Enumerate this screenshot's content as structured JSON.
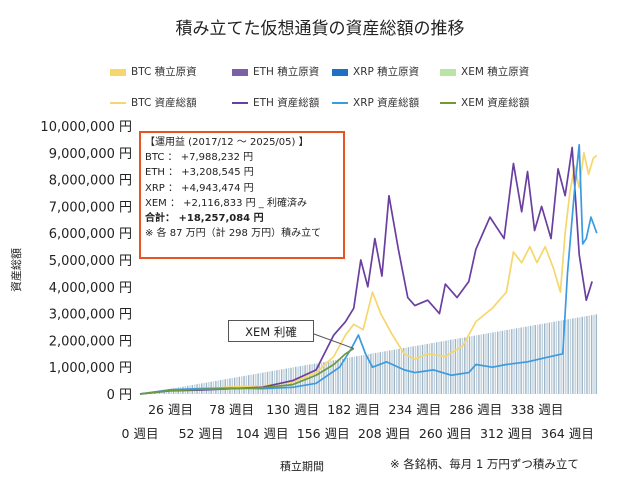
{
  "title": "積み立てた仮想通貨の資産総額の推移",
  "legend": [
    {
      "label": "BTC  積立原資",
      "kind": "bar",
      "color": "#f5d76e"
    },
    {
      "label": "ETH  積立原資",
      "kind": "bar",
      "color": "#7d5fa6"
    },
    {
      "label": "XRP  積立原資",
      "kind": "bar",
      "color": "#1f6fc4"
    },
    {
      "label": "XEM  積立原資",
      "kind": "bar",
      "color": "#b9e4a5"
    },
    {
      "label": "BTC  資産総額",
      "kind": "line",
      "color": "#f5d76e"
    },
    {
      "label": "ETH  資産総額",
      "kind": "line",
      "color": "#6a3fa0"
    },
    {
      "label": "XRP  資産総額",
      "kind": "line",
      "color": "#3a9be0"
    },
    {
      "label": "XEM  資産総額",
      "kind": "line",
      "color": "#6c9a3c"
    }
  ],
  "infobox": {
    "heading": "【運用益 (2017/12 ～ 2025/05) 】",
    "btc": "BTC ： +7,988,232 円",
    "eth": "ETH ： +3,208,545 円",
    "xrp": "XRP ： +4,943,474 円",
    "xem": "XEM ： +2,116,833 円 _ 利確済み",
    "total": "合計： +18,257,084 円",
    "note": "※ 各 87 万円（計 298 万円）積み立て"
  },
  "callout": "XEM 利確",
  "xlabel": "積立期間",
  "ylabel": "資産総額",
  "footnote": "※ 各銘柄、毎月 1 万円ずつ積み立て",
  "chart_data": {
    "type": "line",
    "x_unit": "週目",
    "xlim": [
      0,
      390
    ],
    "ylim": [
      0,
      10000000
    ],
    "y_ticks": [
      "0 円",
      "1,000,000 円",
      "2,000,000 円",
      "3,000,000 円",
      "4,000,000 円",
      "5,000,000 円",
      "6,000,000 円",
      "7,000,000 円",
      "8,000,000 円",
      "9,000,000 円",
      "10,000,000 円"
    ],
    "x_ticks_row1": [
      "26 週目",
      "78 週目",
      "130 週目",
      "182 週目",
      "234 週目",
      "286 週目",
      "338 週目"
    ],
    "x_ticks_row2": [
      "0 週目",
      "52 週目",
      "104 週目",
      "156 週目",
      "208 週目",
      "260 週目",
      "312 週目",
      "364 週目"
    ],
    "grid": false,
    "legend_position": "top",
    "series": [
      {
        "name": "BTC  資産総額",
        "color": "#f5d76e",
        "points": [
          [
            0,
            0
          ],
          [
            26,
            150000
          ],
          [
            52,
            180000
          ],
          [
            78,
            260000
          ],
          [
            104,
            300000
          ],
          [
            130,
            450000
          ],
          [
            150,
            800000
          ],
          [
            165,
            1400000
          ],
          [
            175,
            2200000
          ],
          [
            182,
            2600000
          ],
          [
            190,
            2400000
          ],
          [
            198,
            3800000
          ],
          [
            205,
            3000000
          ],
          [
            215,
            2200000
          ],
          [
            225,
            1500000
          ],
          [
            234,
            1300000
          ],
          [
            245,
            1500000
          ],
          [
            260,
            1400000
          ],
          [
            275,
            1800000
          ],
          [
            286,
            2700000
          ],
          [
            300,
            3200000
          ],
          [
            312,
            3800000
          ],
          [
            318,
            5300000
          ],
          [
            325,
            4900000
          ],
          [
            332,
            5500000
          ],
          [
            338,
            4900000
          ],
          [
            345,
            5500000
          ],
          [
            352,
            4700000
          ],
          [
            358,
            3800000
          ],
          [
            362,
            6000000
          ],
          [
            366,
            7500000
          ],
          [
            370,
            8500000
          ],
          [
            374,
            7700000
          ],
          [
            378,
            9000000
          ],
          [
            382,
            8200000
          ],
          [
            386,
            8800000
          ],
          [
            389,
            8900000
          ]
        ]
      },
      {
        "name": "ETH  資産総額",
        "color": "#6a3fa0",
        "points": [
          [
            0,
            0
          ],
          [
            26,
            120000
          ],
          [
            52,
            150000
          ],
          [
            78,
            200000
          ],
          [
            104,
            250000
          ],
          [
            130,
            500000
          ],
          [
            150,
            900000
          ],
          [
            165,
            2200000
          ],
          [
            175,
            2700000
          ],
          [
            182,
            3200000
          ],
          [
            188,
            5000000
          ],
          [
            194,
            4000000
          ],
          [
            200,
            5800000
          ],
          [
            206,
            4400000
          ],
          [
            212,
            7400000
          ],
          [
            220,
            5400000
          ],
          [
            228,
            3600000
          ],
          [
            234,
            3300000
          ],
          [
            245,
            3500000
          ],
          [
            255,
            3000000
          ],
          [
            260,
            4100000
          ],
          [
            270,
            3600000
          ],
          [
            280,
            4200000
          ],
          [
            286,
            5400000
          ],
          [
            298,
            6600000
          ],
          [
            310,
            5800000
          ],
          [
            318,
            8600000
          ],
          [
            325,
            6800000
          ],
          [
            330,
            8300000
          ],
          [
            336,
            6100000
          ],
          [
            342,
            7000000
          ],
          [
            350,
            5800000
          ],
          [
            356,
            8400000
          ],
          [
            362,
            7400000
          ],
          [
            368,
            9200000
          ],
          [
            374,
            5200000
          ],
          [
            380,
            3500000
          ],
          [
            385,
            4200000
          ]
        ]
      },
      {
        "name": "XRP  資産総額",
        "color": "#3a9be0",
        "points": [
          [
            0,
            0
          ],
          [
            26,
            160000
          ],
          [
            52,
            200000
          ],
          [
            78,
            220000
          ],
          [
            104,
            200000
          ],
          [
            130,
            250000
          ],
          [
            150,
            400000
          ],
          [
            170,
            1000000
          ],
          [
            180,
            1700000
          ],
          [
            186,
            2200000
          ],
          [
            192,
            1500000
          ],
          [
            198,
            1000000
          ],
          [
            210,
            1200000
          ],
          [
            225,
            900000
          ],
          [
            234,
            800000
          ],
          [
            250,
            900000
          ],
          [
            265,
            700000
          ],
          [
            280,
            800000
          ],
          [
            286,
            1100000
          ],
          [
            300,
            1000000
          ],
          [
            312,
            1100000
          ],
          [
            330,
            1200000
          ],
          [
            350,
            1400000
          ],
          [
            360,
            1500000
          ],
          [
            364,
            4500000
          ],
          [
            370,
            7600000
          ],
          [
            374,
            9300000
          ],
          [
            377,
            5600000
          ],
          [
            380,
            5800000
          ],
          [
            384,
            6600000
          ],
          [
            389,
            6000000
          ]
        ]
      },
      {
        "name": "XEM  資産総額",
        "color": "#6c9a3c",
        "points": [
          [
            0,
            0
          ],
          [
            26,
            130000
          ],
          [
            52,
            170000
          ],
          [
            78,
            200000
          ],
          [
            104,
            230000
          ],
          [
            130,
            350000
          ],
          [
            150,
            700000
          ],
          [
            165,
            1100000
          ],
          [
            175,
            1500000
          ],
          [
            182,
            1700000
          ]
        ]
      }
    ]
  }
}
